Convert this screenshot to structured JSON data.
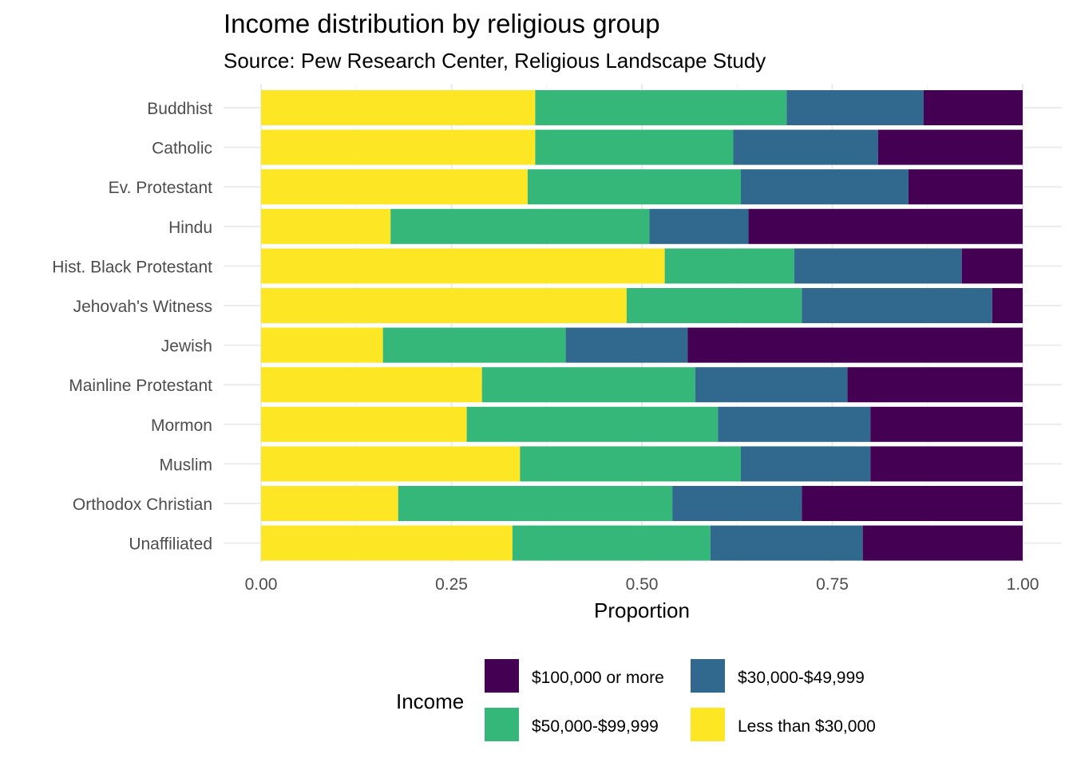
{
  "chart_data": {
    "type": "bar",
    "orientation": "horizontal",
    "stacked": true,
    "title": "Income distribution by religious group",
    "subtitle": "Source: Pew Research Center, Religious Landscape Study",
    "xlabel": "Proportion",
    "ylabel": "",
    "xlim": [
      0,
      1
    ],
    "xticks": [
      0,
      0.25,
      0.5,
      0.75,
      1.0
    ],
    "xtick_labels": [
      "0.00",
      "0.25",
      "0.50",
      "0.75",
      "1.00"
    ],
    "grid": true,
    "categories": [
      "Buddhist",
      "Catholic",
      "Ev. Protestant",
      "Hindu",
      "Hist. Black Protestant",
      "Jehovah's Witness",
      "Jewish",
      "Mainline Protestant",
      "Mormon",
      "Muslim",
      "Orthodox Christian",
      "Unaffiliated"
    ],
    "series": [
      {
        "name": "Less than $30,000",
        "color": "#FDE725",
        "values": [
          0.36,
          0.36,
          0.35,
          0.17,
          0.53,
          0.48,
          0.16,
          0.29,
          0.27,
          0.34,
          0.18,
          0.33
        ]
      },
      {
        "name": "$50,000-$99,999",
        "color": "#35B779",
        "values": [
          0.33,
          0.26,
          0.28,
          0.34,
          0.17,
          0.23,
          0.24,
          0.28,
          0.33,
          0.29,
          0.36,
          0.26
        ]
      },
      {
        "name": "$30,000-$49,999",
        "color": "#31688E",
        "values": [
          0.18,
          0.19,
          0.22,
          0.13,
          0.22,
          0.25,
          0.16,
          0.2,
          0.2,
          0.17,
          0.17,
          0.2
        ]
      },
      {
        "name": "$100,000 or more",
        "color": "#440154",
        "values": [
          0.13,
          0.19,
          0.15,
          0.36,
          0.08,
          0.04,
          0.44,
          0.23,
          0.2,
          0.2,
          0.29,
          0.21
        ]
      }
    ],
    "legend": {
      "title": "Income",
      "position": "bottom",
      "entries": [
        {
          "label": "$100,000 or more",
          "color": "#440154"
        },
        {
          "label": "$30,000-$49,999",
          "color": "#31688E"
        },
        {
          "label": "$50,000-$99,999",
          "color": "#35B779"
        },
        {
          "label": "Less than $30,000",
          "color": "#FDE725"
        }
      ]
    }
  }
}
